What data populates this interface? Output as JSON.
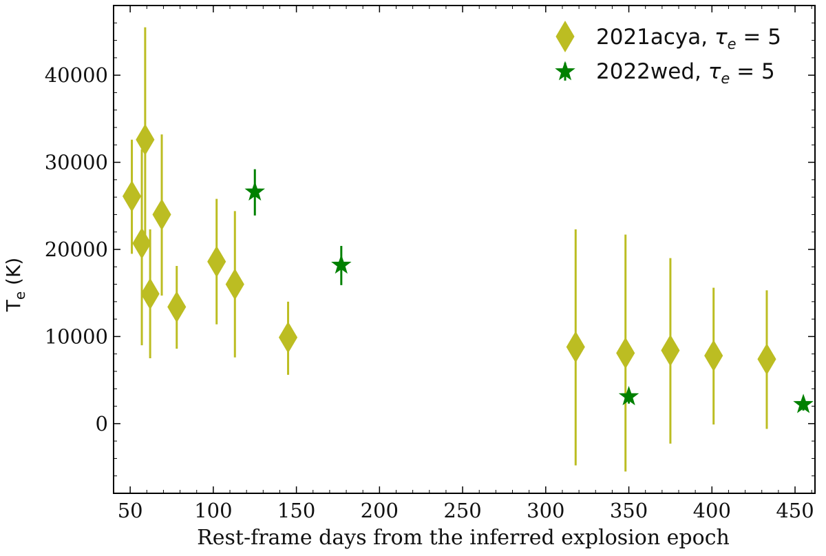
{
  "chart_data": {
    "type": "scatter",
    "xlabel": "Rest-frame days from the inferred explosion epoch",
    "ylabel": "T",
    "ylabel_subscript": "e",
    "ylabel_unit": " (K)",
    "xlim": [
      40,
      462
    ],
    "ylim": [
      -8000,
      48000
    ],
    "xticks": [
      50,
      100,
      150,
      200,
      250,
      300,
      350,
      400,
      450
    ],
    "yticks": [
      0,
      10000,
      20000,
      30000,
      40000
    ],
    "grid": false,
    "legend_position": "top-right",
    "series": [
      {
        "name": "2021acya, τ_e = 5",
        "legend_prefix": "2021acya, ",
        "marker": "diamond",
        "color": "#bcbd22",
        "points": [
          {
            "x": 51,
            "y": 26100,
            "yerr_low": 19500,
            "yerr_high": 32600
          },
          {
            "x": 57,
            "y": 20700,
            "yerr_low": 9000,
            "yerr_high": 31500
          },
          {
            "x": 59,
            "y": 32600,
            "yerr_low": 19800,
            "yerr_high": 45500
          },
          {
            "x": 62,
            "y": 14900,
            "yerr_low": 7500,
            "yerr_high": 22300
          },
          {
            "x": 69,
            "y": 24000,
            "yerr_low": 14700,
            "yerr_high": 33200
          },
          {
            "x": 78,
            "y": 13400,
            "yerr_low": 8600,
            "yerr_high": 18100
          },
          {
            "x": 102,
            "y": 18600,
            "yerr_low": 11400,
            "yerr_high": 25800
          },
          {
            "x": 113,
            "y": 16000,
            "yerr_low": 7600,
            "yerr_high": 24400
          },
          {
            "x": 145,
            "y": 9900,
            "yerr_low": 5600,
            "yerr_high": 14000
          },
          {
            "x": 318,
            "y": 8800,
            "yerr_low": -4800,
            "yerr_high": 22300
          },
          {
            "x": 348,
            "y": 8100,
            "yerr_low": -5500,
            "yerr_high": 21700
          },
          {
            "x": 375,
            "y": 8400,
            "yerr_low": -2300,
            "yerr_high": 19000
          },
          {
            "x": 401,
            "y": 7800,
            "yerr_low": -100,
            "yerr_high": 15600
          },
          {
            "x": 433,
            "y": 7400,
            "yerr_low": -600,
            "yerr_high": 15300
          }
        ]
      },
      {
        "name": "2022wed, τ_e = 5",
        "legend_prefix": "2022wed, ",
        "marker": "star",
        "color": "#008000",
        "points": [
          {
            "x": 125,
            "y": 26600,
            "yerr_low": 23900,
            "yerr_high": 29200
          },
          {
            "x": 177,
            "y": 18200,
            "yerr_low": 15900,
            "yerr_high": 20400
          },
          {
            "x": 350,
            "y": 3100,
            "yerr_low": 2300,
            "yerr_high": 3900
          },
          {
            "x": 455,
            "y": 2200,
            "yerr_low": 1500,
            "yerr_high": 2900
          }
        ]
      }
    ]
  }
}
